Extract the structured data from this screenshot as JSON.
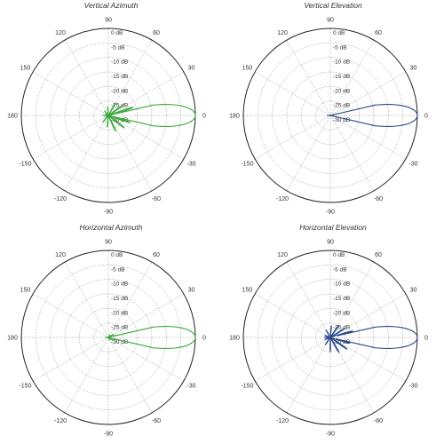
{
  "chart_data": [
    {
      "type": "polar",
      "title": "Vertical Azimuth",
      "angular_tick_labels": [
        "0",
        "30",
        "60",
        "90",
        "120",
        "150",
        "180",
        "-150",
        "-120",
        "-90",
        "-60",
        "-30"
      ],
      "radial_tick_labels": [
        "0 dB",
        "-5 dB",
        "-10 dB",
        "-15 dB",
        "-20 dB",
        "-25 dB",
        "-30 dB"
      ],
      "rlim": [
        -30,
        0
      ],
      "grid": true,
      "series_color": "#3aa83a",
      "main_lobe": {
        "peak_db": 0,
        "half_width_deg": 6
      },
      "side_lobes": [
        {
          "angle": 18,
          "db": -19
        },
        {
          "angle": -18,
          "db": -20
        },
        {
          "angle": 35,
          "db": -22
        },
        {
          "angle": -38,
          "db": -21
        },
        {
          "angle": 60,
          "db": -23
        },
        {
          "angle": -65,
          "db": -22
        },
        {
          "angle": 95,
          "db": -25
        },
        {
          "angle": -95,
          "db": -24
        },
        {
          "angle": 130,
          "db": -26
        },
        {
          "angle": -130,
          "db": -25
        },
        {
          "angle": 165,
          "db": -27
        },
        {
          "angle": -165,
          "db": -27
        },
        {
          "angle": 180,
          "db": -26
        }
      ]
    },
    {
      "type": "polar",
      "title": "Vertical Elevation",
      "angular_tick_labels": [
        "0",
        "30",
        "60",
        "90",
        "120",
        "150",
        "180",
        "-150",
        "-120",
        "-90",
        "-60",
        "-30"
      ],
      "radial_tick_labels": [
        "0 dB",
        "-5 dB",
        "-10 dB",
        "-15 dB",
        "-20 dB",
        "-25 dB",
        "-30 dB"
      ],
      "rlim": [
        -30,
        0
      ],
      "grid": true,
      "series_color": "#2a4a8a",
      "main_lobe": {
        "peak_db": 0,
        "half_width_deg": 6
      },
      "side_lobes": [
        {
          "angle": 14,
          "db": -27
        },
        {
          "angle": -14,
          "db": -27
        },
        {
          "angle": 30,
          "db": -28
        },
        {
          "angle": -30,
          "db": -28
        },
        {
          "angle": 180,
          "db": -27
        }
      ]
    },
    {
      "type": "polar",
      "title": "Horizontal Azimuth",
      "angular_tick_labels": [
        "0",
        "30",
        "60",
        "90",
        "120",
        "150",
        "180",
        "-150",
        "-120",
        "-90",
        "-60",
        "-30"
      ],
      "radial_tick_labels": [
        "0 dB",
        "-5 dB",
        "-10 dB",
        "-15 dB",
        "-20 dB",
        "-25 dB",
        "-30 dB"
      ],
      "rlim": [
        -30,
        0
      ],
      "grid": true,
      "series_color": "#3aa83a",
      "main_lobe": {
        "peak_db": 0,
        "half_width_deg": 6
      },
      "side_lobes": [
        {
          "angle": 15,
          "db": -25
        },
        {
          "angle": -15,
          "db": -25
        },
        {
          "angle": 32,
          "db": -26
        },
        {
          "angle": -32,
          "db": -26
        },
        {
          "angle": 60,
          "db": -27
        },
        {
          "angle": -60,
          "db": -27
        },
        {
          "angle": 180,
          "db": -27
        }
      ]
    },
    {
      "type": "polar",
      "title": "Horizontal Elevation",
      "angular_tick_labels": [
        "0",
        "30",
        "60",
        "90",
        "120",
        "150",
        "180",
        "-150",
        "-120",
        "-90",
        "-60",
        "-30"
      ],
      "radial_tick_labels": [
        "0 dB",
        "-5 dB",
        "-10 dB",
        "-15 dB",
        "-20 dB",
        "-25 dB",
        "-30 dB"
      ],
      "rlim": [
        -30,
        0
      ],
      "grid": true,
      "series_color": "#2a4a8a",
      "main_lobe": {
        "peak_db": 0,
        "half_width_deg": 6
      },
      "side_lobes": [
        {
          "angle": 16,
          "db": -20
        },
        {
          "angle": -16,
          "db": -21
        },
        {
          "angle": 32,
          "db": -22
        },
        {
          "angle": -35,
          "db": -21
        },
        {
          "angle": 55,
          "db": -23
        },
        {
          "angle": -60,
          "db": -22
        },
        {
          "angle": 85,
          "db": -24
        },
        {
          "angle": -90,
          "db": -23
        },
        {
          "angle": 120,
          "db": -25
        },
        {
          "angle": -125,
          "db": -25
        },
        {
          "angle": 160,
          "db": -26
        },
        {
          "angle": -160,
          "db": -26
        },
        {
          "angle": 180,
          "db": -26
        }
      ]
    }
  ]
}
